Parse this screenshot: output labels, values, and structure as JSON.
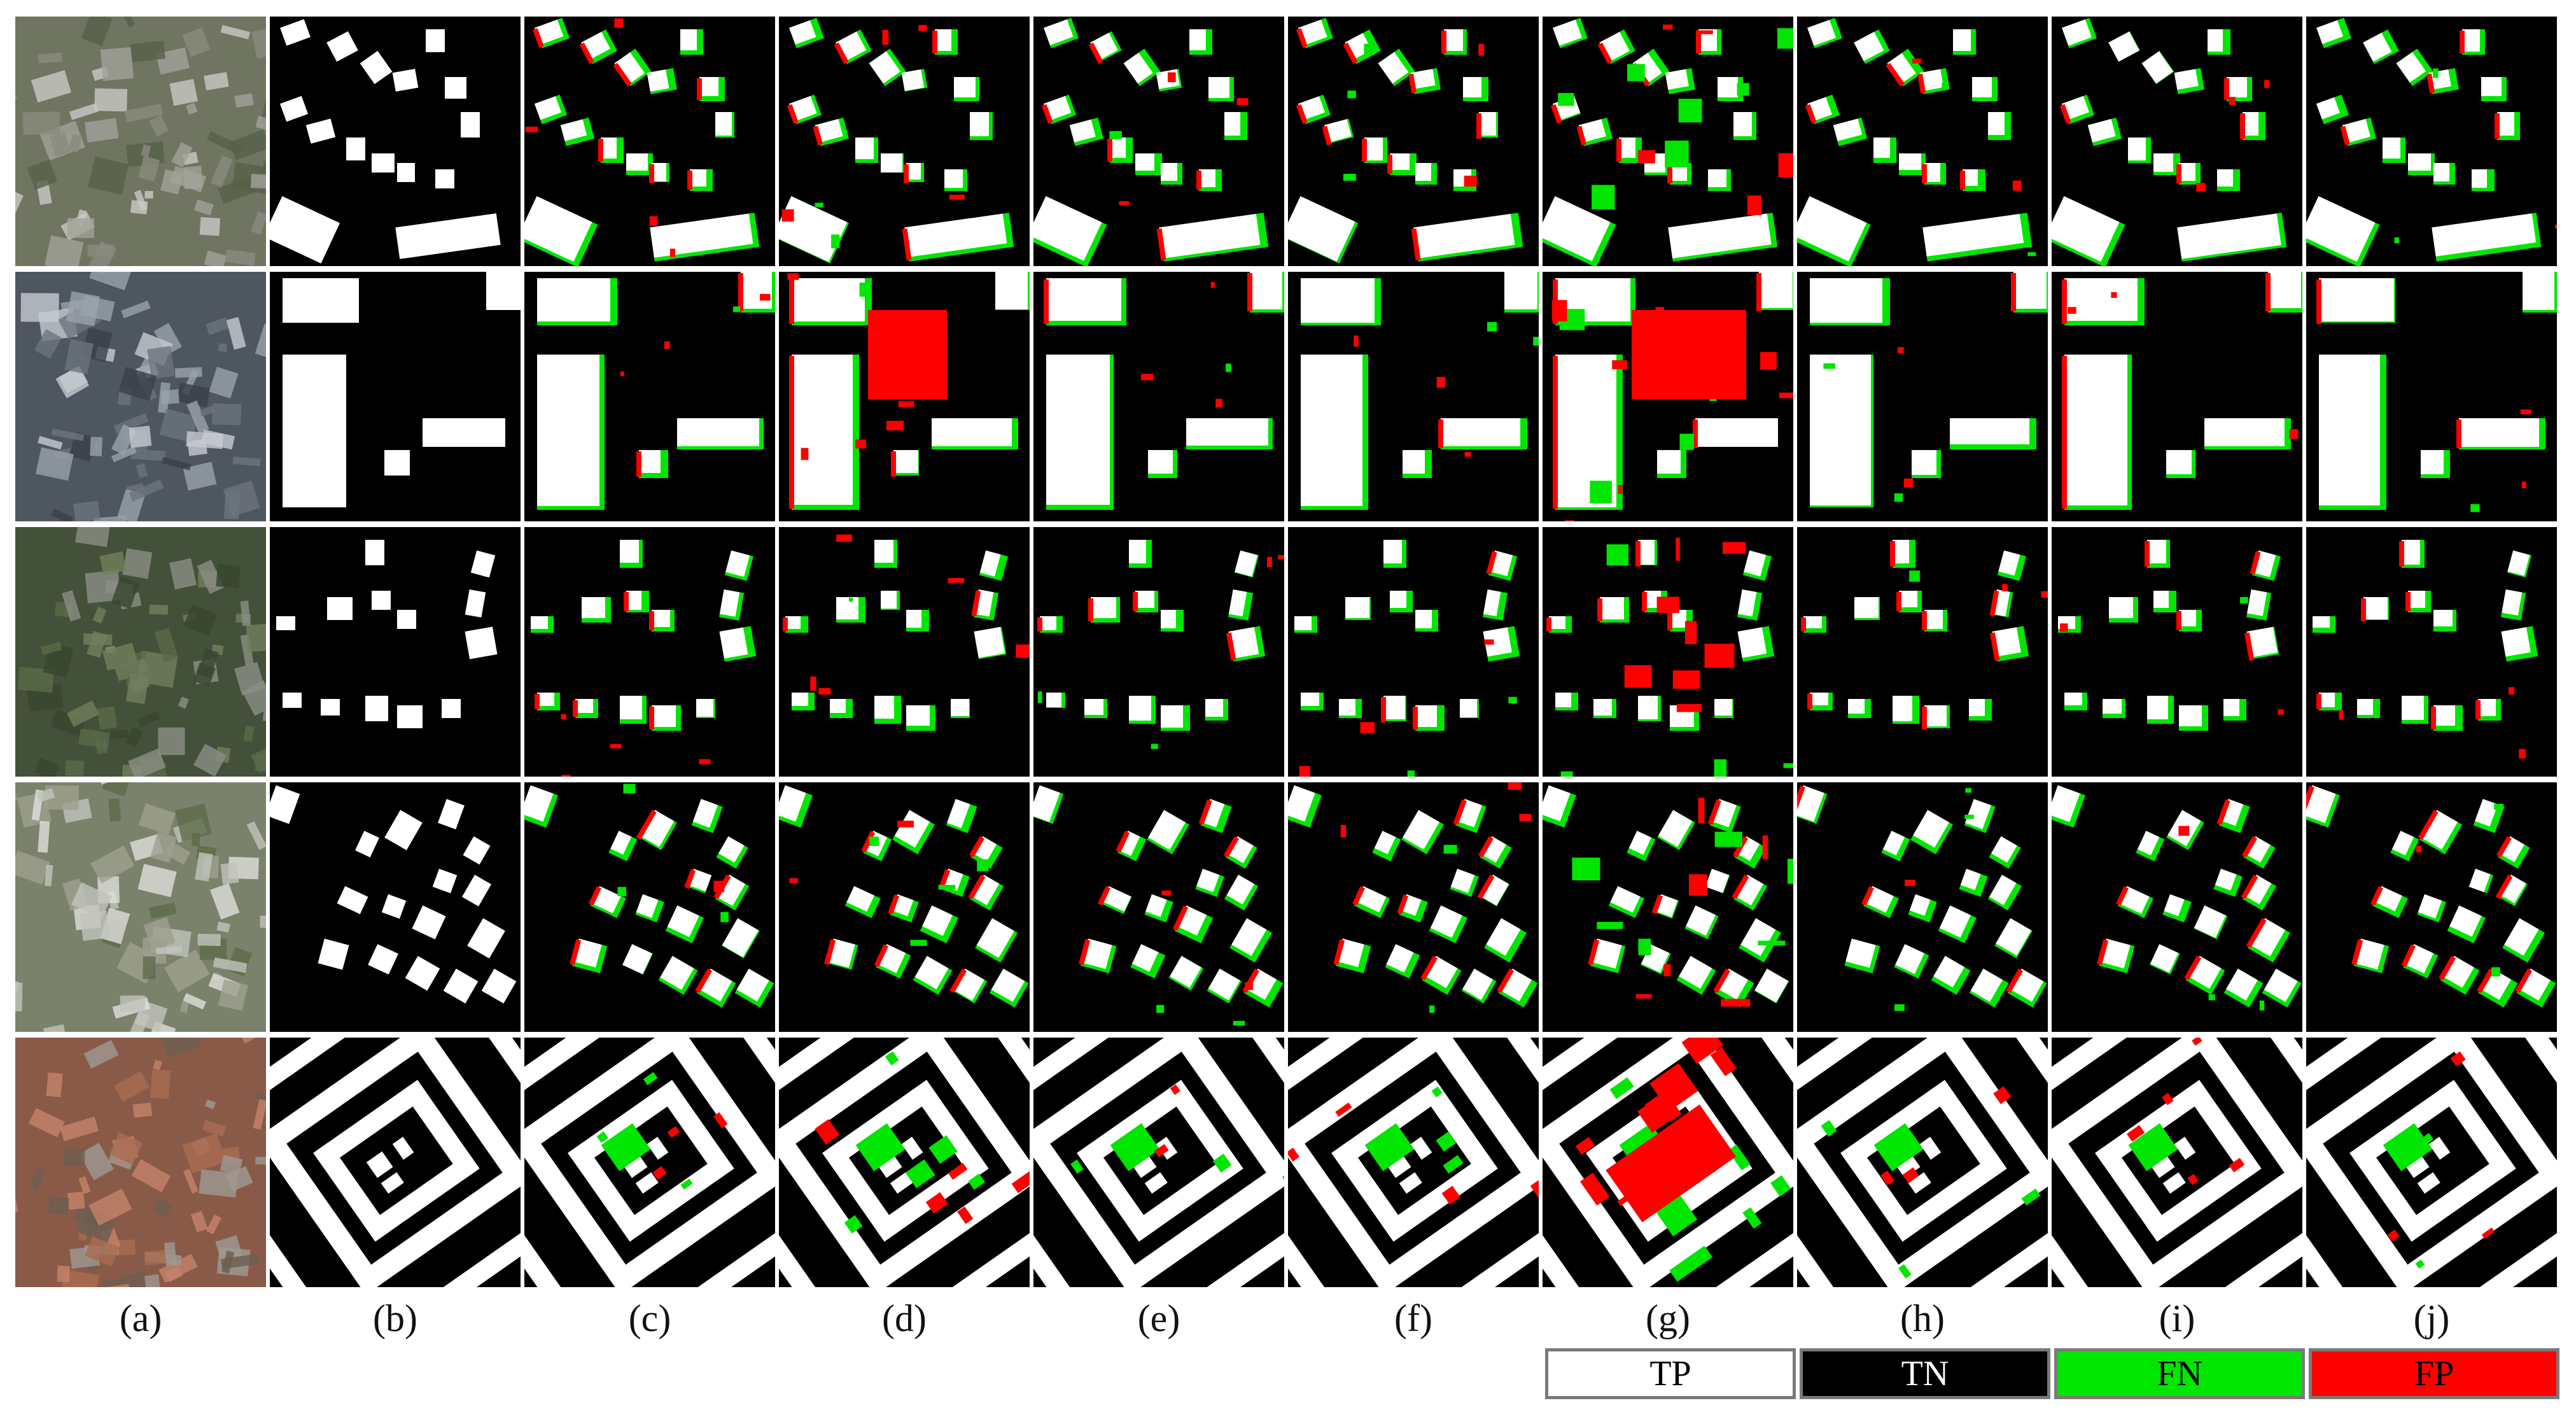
{
  "figure": {
    "columns": [
      "(a)",
      "(b)",
      "(c)",
      "(d)",
      "(e)",
      "(f)",
      "(g)",
      "(h)",
      "(i)",
      "(j)"
    ],
    "rows": 5
  },
  "legend": [
    {
      "label": "TP",
      "color": "#ffffff",
      "text_color": "#000000"
    },
    {
      "label": "TN",
      "color": "#000000",
      "text_color": "#ffffff"
    },
    {
      "label": "FN",
      "color": "#00e600",
      "text_color": "#000000"
    },
    {
      "label": "FP",
      "color": "#ff0000",
      "text_color": "#000000"
    }
  ],
  "colors": {
    "building": "#ffffff",
    "background": "#000000",
    "false_negative": "#00e600",
    "false_positive": "#ff0000"
  }
}
